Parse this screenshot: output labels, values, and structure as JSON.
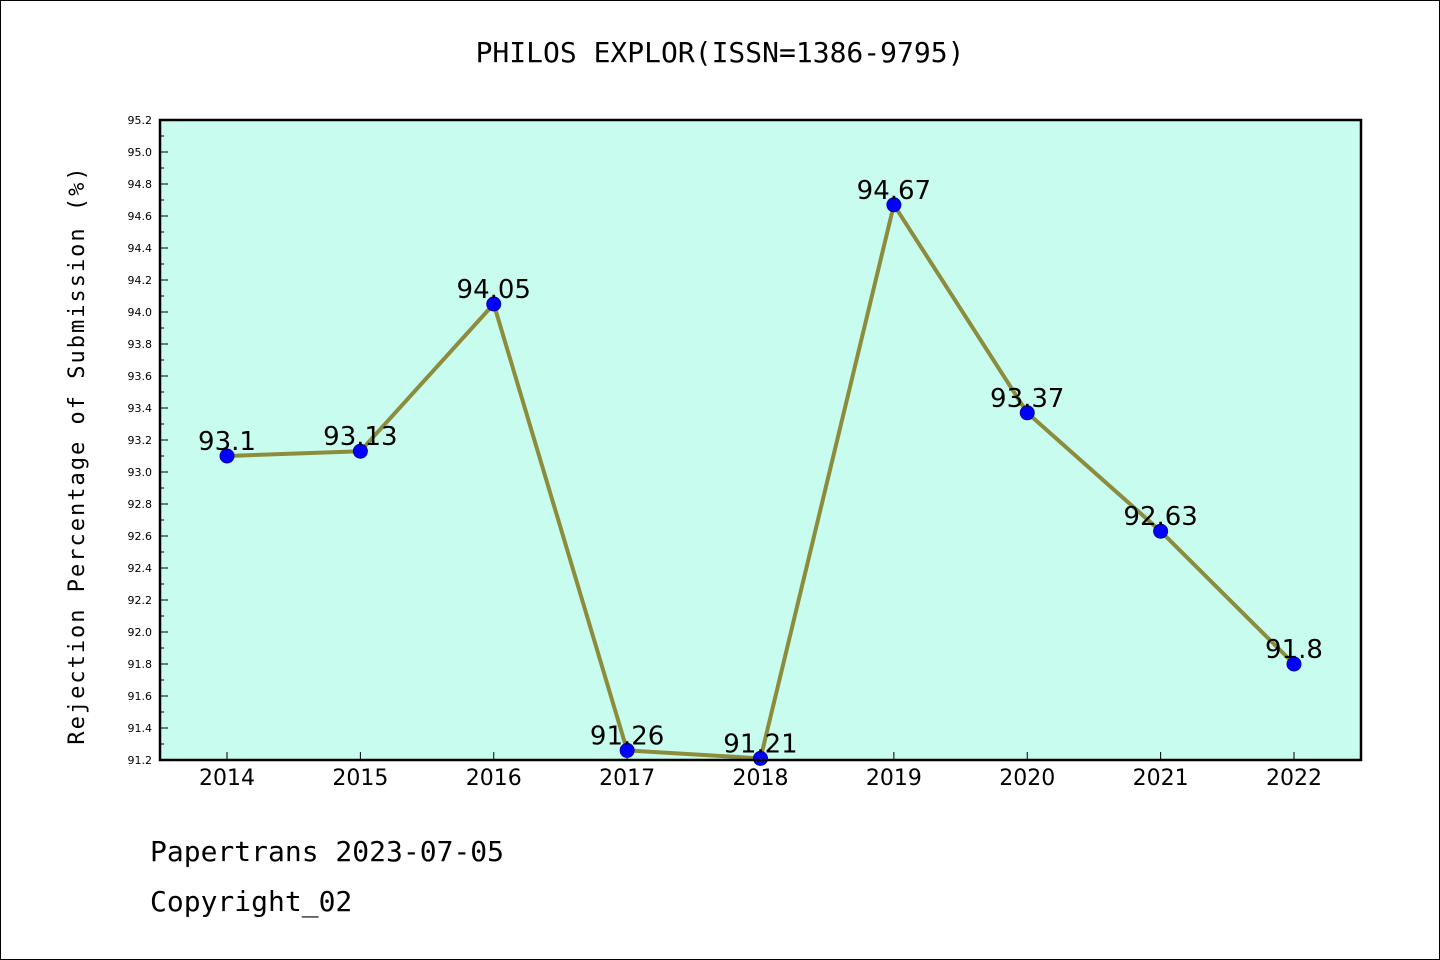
{
  "colors": {
    "plot_background": "#c8fcee",
    "line": "#8c8c3c",
    "marker": "#0000ff",
    "marker_edge": "#0000aa",
    "axis": "#000000"
  },
  "footer": {
    "date_line": "Papertrans 2023-07-05",
    "copyright_line": "Copyright_02"
  },
  "chart_data": {
    "type": "line",
    "title": "PHILOS EXPLOR(ISSN=1386-9795)",
    "xlabel": "",
    "ylabel": "Rejection Percentage of Submission (%)",
    "x": [
      "2014",
      "2015",
      "2016",
      "2017",
      "2018",
      "2019",
      "2020",
      "2021",
      "2022"
    ],
    "series": [
      {
        "values": [
          93.1,
          93.13,
          94.05,
          91.26,
          91.21,
          94.67,
          93.37,
          92.63,
          91.8
        ],
        "labels": [
          "93.1",
          "93.13",
          "94.05",
          "91.26",
          "91.21",
          "94.67",
          "93.37",
          "92.63",
          "91.8"
        ]
      }
    ],
    "ylim": [
      91.2,
      95.2
    ],
    "yticks": [
      "91.2",
      "91.4",
      "91.6",
      "91.8",
      "92.0",
      "92.2",
      "92.4",
      "92.6",
      "92.8",
      "93.0",
      "93.2",
      "93.4",
      "93.6",
      "93.8",
      "94.0",
      "94.2",
      "94.4",
      "94.6",
      "94.8",
      "95.0",
      "95.2"
    ],
    "grid": false,
    "legend": "none"
  }
}
